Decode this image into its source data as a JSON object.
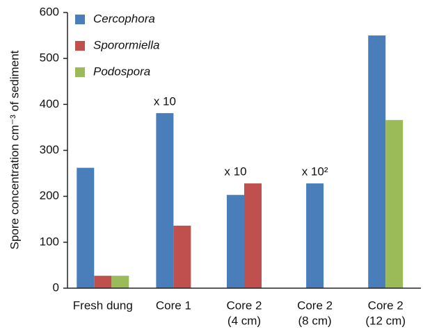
{
  "chart_data": {
    "type": "bar",
    "y_label": "Spore concentration cm⁻³ of sediment",
    "categories": [
      [
        "Fresh dung"
      ],
      [
        "Core 1"
      ],
      [
        "Core 2",
        "(4 cm)"
      ],
      [
        "Core 2",
        "(8 cm)"
      ],
      [
        "Core 2",
        "(12 cm)"
      ]
    ],
    "series": [
      {
        "name": "Cercophora",
        "color": "#4a7ebb",
        "values": [
          262,
          381,
          203,
          228,
          550
        ]
      },
      {
        "name": "Sporormiella",
        "color": "#c0504d",
        "values": [
          27,
          136,
          228,
          null,
          null
        ]
      },
      {
        "name": "Podospora",
        "color": "#9bbb59",
        "values": [
          27,
          null,
          null,
          null,
          366
        ]
      }
    ],
    "annotations": [
      null,
      "x 10",
      "x 10",
      "x 10²",
      null
    ],
    "ylim": [
      0,
      600
    ],
    "yticks": [
      0,
      100,
      200,
      300,
      400,
      500,
      600
    ],
    "legend": "top-left"
  }
}
